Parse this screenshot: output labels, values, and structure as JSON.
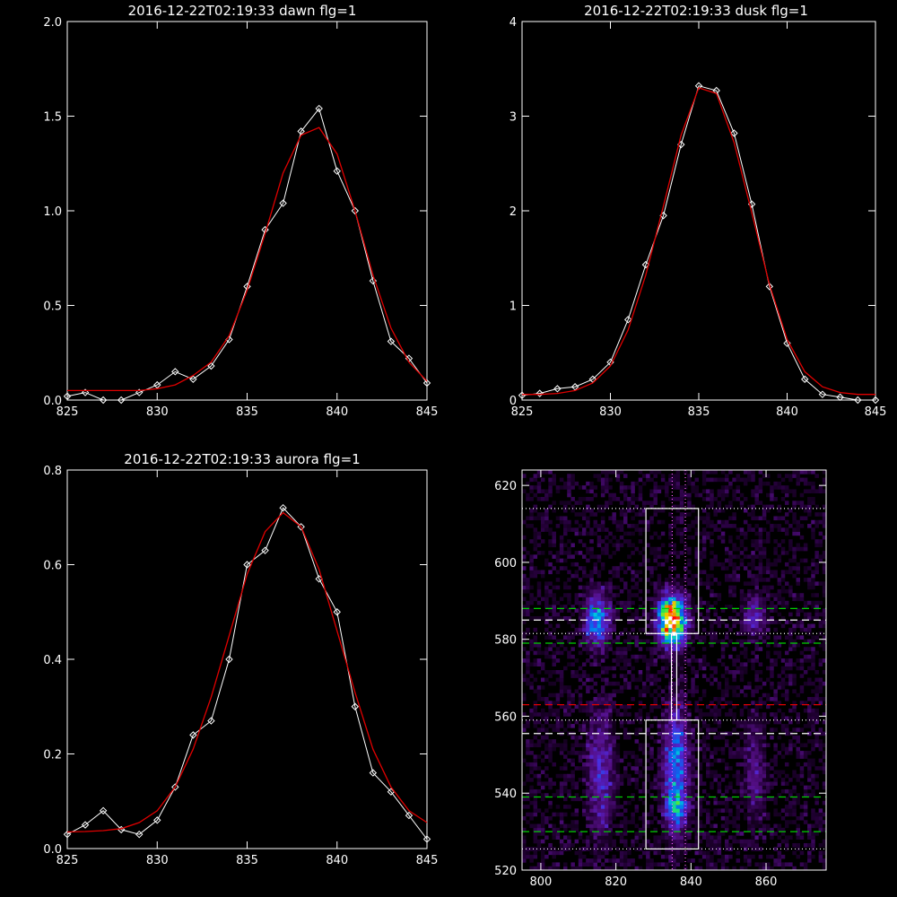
{
  "chart_data": [
    {
      "type": "line",
      "title": "2016-12-22T02:19:33 dawn flg=1",
      "xlim": [
        825,
        845
      ],
      "ylim": [
        0,
        2.0
      ],
      "xticks": [
        "825",
        "830",
        "835",
        "840",
        "845"
      ],
      "yticks": [
        "0.0",
        "0.5",
        "1.0",
        "1.5",
        "2.0"
      ],
      "xtick_values": [
        825,
        830,
        835,
        840,
        845
      ],
      "ytick_values": [
        0,
        0.5,
        1.0,
        1.5,
        2.0
      ],
      "series": [
        {
          "kind": "data",
          "color": "#ffffff",
          "marker": "diamond",
          "x": [
            825,
            826,
            827,
            828,
            829,
            830,
            831,
            832,
            833,
            834,
            835,
            836,
            837,
            838,
            839,
            840,
            841,
            842,
            843,
            844,
            845
          ],
          "y": [
            0.02,
            0.04,
            0.0,
            0.0,
            0.04,
            0.08,
            0.15,
            0.11,
            0.18,
            0.32,
            0.6,
            0.9,
            1.04,
            1.42,
            1.54,
            1.21,
            1.0,
            0.63,
            0.31,
            0.22,
            0.09
          ]
        },
        {
          "kind": "fit",
          "color": "#e00000",
          "x": [
            825,
            826,
            827,
            828,
            829,
            830,
            831,
            832,
            833,
            834,
            835,
            836,
            837,
            838,
            839,
            840,
            841,
            842,
            843,
            844,
            845
          ],
          "y": [
            0.05,
            0.05,
            0.05,
            0.05,
            0.05,
            0.06,
            0.08,
            0.13,
            0.2,
            0.34,
            0.58,
            0.88,
            1.2,
            1.4,
            1.44,
            1.3,
            1.0,
            0.66,
            0.38,
            0.2,
            0.1
          ]
        }
      ]
    },
    {
      "type": "line",
      "title": "2016-12-22T02:19:33 dusk flg=1",
      "xlim": [
        825,
        845
      ],
      "ylim": [
        0,
        4
      ],
      "xticks": [
        "825",
        "830",
        "835",
        "840",
        "845"
      ],
      "yticks": [
        "0",
        "1",
        "2",
        "3",
        "4"
      ],
      "xtick_values": [
        825,
        830,
        835,
        840,
        845
      ],
      "ytick_values": [
        0,
        1,
        2,
        3,
        4
      ],
      "series": [
        {
          "kind": "data",
          "color": "#ffffff",
          "marker": "diamond",
          "x": [
            825,
            826,
            827,
            828,
            829,
            830,
            831,
            832,
            833,
            834,
            835,
            836,
            837,
            838,
            839,
            840,
            841,
            842,
            843,
            844,
            845
          ],
          "y": [
            0.05,
            0.07,
            0.12,
            0.14,
            0.22,
            0.4,
            0.85,
            1.43,
            1.95,
            2.7,
            3.32,
            3.27,
            2.82,
            2.07,
            1.2,
            0.6,
            0.22,
            0.06,
            0.03,
            0.0,
            0.0
          ]
        },
        {
          "kind": "fit",
          "color": "#e00000",
          "x": [
            825,
            826,
            827,
            828,
            829,
            830,
            831,
            832,
            833,
            834,
            835,
            836,
            837,
            838,
            839,
            840,
            841,
            842,
            843,
            844,
            845
          ],
          "y": [
            0.06,
            0.06,
            0.07,
            0.1,
            0.18,
            0.36,
            0.74,
            1.32,
            2.05,
            2.8,
            3.3,
            3.24,
            2.72,
            1.98,
            1.22,
            0.64,
            0.3,
            0.14,
            0.08,
            0.06,
            0.06
          ]
        }
      ]
    },
    {
      "type": "line",
      "title": "2016-12-22T02:19:33 aurora flg=1",
      "xlim": [
        825,
        845
      ],
      "ylim": [
        0,
        0.8
      ],
      "xticks": [
        "825",
        "830",
        "835",
        "840",
        "845"
      ],
      "yticks": [
        "0.0",
        "0.2",
        "0.4",
        "0.6",
        "0.8"
      ],
      "xtick_values": [
        825,
        830,
        835,
        840,
        845
      ],
      "ytick_values": [
        0,
        0.2,
        0.4,
        0.6,
        0.8
      ],
      "series": [
        {
          "kind": "data",
          "color": "#ffffff",
          "marker": "diamond",
          "x": [
            825,
            826,
            827,
            828,
            829,
            830,
            831,
            832,
            833,
            834,
            835,
            836,
            837,
            838,
            839,
            840,
            841,
            842,
            843,
            844,
            845
          ],
          "y": [
            0.03,
            0.05,
            0.08,
            0.04,
            0.03,
            0.06,
            0.13,
            0.24,
            0.27,
            0.4,
            0.6,
            0.63,
            0.72,
            0.68,
            0.57,
            0.5,
            0.3,
            0.16,
            0.12,
            0.07,
            0.02
          ]
        },
        {
          "kind": "fit",
          "color": "#e00000",
          "x": [
            825,
            826,
            827,
            828,
            829,
            830,
            831,
            832,
            833,
            834,
            835,
            836,
            837,
            838,
            839,
            840,
            841,
            842,
            843,
            844,
            845
          ],
          "y": [
            0.035,
            0.036,
            0.038,
            0.042,
            0.055,
            0.08,
            0.13,
            0.21,
            0.32,
            0.45,
            0.58,
            0.67,
            0.71,
            0.68,
            0.59,
            0.46,
            0.33,
            0.21,
            0.13,
            0.08,
            0.055
          ]
        }
      ]
    },
    {
      "type": "heatmap",
      "title": "",
      "xlim": [
        795,
        876
      ],
      "ylim": [
        520,
        624
      ],
      "xticks": [
        "800",
        "820",
        "840",
        "860"
      ],
      "yticks": [
        "520",
        "540",
        "560",
        "580",
        "600",
        "620"
      ],
      "xtick_values": [
        800,
        820,
        840,
        860
      ],
      "ytick_values": [
        520,
        540,
        560,
        580,
        600,
        620
      ],
      "blobs": [
        {
          "x": 815,
          "y": 585,
          "sx": 2.2,
          "sy": 4.5,
          "peak": 0.45
        },
        {
          "x": 835,
          "y": 585,
          "sx": 2.4,
          "sy": 4.2,
          "peak": 1.0
        },
        {
          "x": 857,
          "y": 586,
          "sx": 2.0,
          "sy": 3.5,
          "peak": 0.22
        },
        {
          "x": 816,
          "y": 545,
          "sx": 2.4,
          "sy": 11,
          "peak": 0.22
        },
        {
          "x": 836,
          "y": 546,
          "sx": 2.2,
          "sy": 11,
          "peak": 0.4
        },
        {
          "x": 836,
          "y": 536,
          "sx": 1.8,
          "sy": 3,
          "peak": 0.25
        },
        {
          "x": 857,
          "y": 546,
          "sx": 2.0,
          "sy": 10,
          "peak": 0.14
        }
      ],
      "boxes": [
        {
          "x0": 828,
          "x1": 842,
          "y0": 581.5,
          "y1": 614
        },
        {
          "x0": 828,
          "x1": 842,
          "y0": 525.5,
          "y1": 559
        },
        {
          "x0": 834.8,
          "x1": 836.2,
          "y0": 559,
          "y1": 581.5
        }
      ],
      "hlines": [
        {
          "y": 614,
          "color": "#ffffff",
          "style": "dotted"
        },
        {
          "y": 588,
          "color": "#00d000",
          "style": "dashed"
        },
        {
          "y": 585,
          "color": "#ffffff",
          "style": "dashed"
        },
        {
          "y": 581.5,
          "color": "#ffffff",
          "style": "dotted"
        },
        {
          "y": 579,
          "color": "#00d000",
          "style": "dashed"
        },
        {
          "y": 563,
          "color": "#e00000",
          "style": "dashed"
        },
        {
          "y": 559,
          "color": "#ffffff",
          "style": "dotted"
        },
        {
          "y": 555.5,
          "color": "#ffffff",
          "style": "dashed"
        },
        {
          "y": 539,
          "color": "#00d000",
          "style": "dashed"
        },
        {
          "y": 530,
          "color": "#00d000",
          "style": "dashed"
        },
        {
          "y": 525.5,
          "color": "#ffffff",
          "style": "dotted"
        }
      ],
      "vlines": [
        {
          "x": 835,
          "color": "#ff60ff",
          "style": "dotted"
        },
        {
          "x": 838.5,
          "color": "#ff60ff",
          "style": "dotted"
        }
      ]
    }
  ]
}
